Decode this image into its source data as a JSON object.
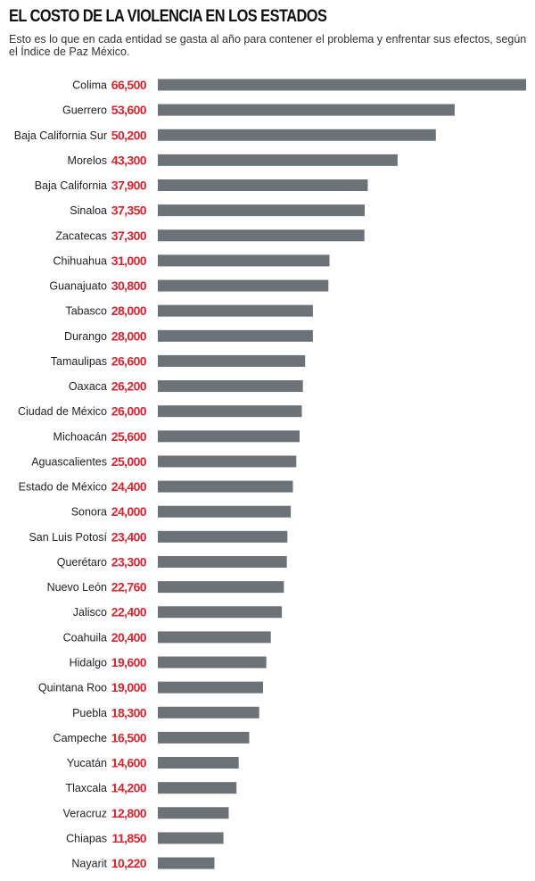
{
  "header": {
    "title": "EL COSTO DE LA VIOLENCIA EN LOS ESTADOS",
    "subtitle": "Esto es lo que en cada entidad se gasta al año para contener el problema y enfrentar sus efectos, según el Índice de Paz México."
  },
  "colors": {
    "bar": "#6b7378",
    "value": "#d7262f",
    "label": "#222222"
  },
  "chart_data": {
    "type": "bar",
    "orientation": "horizontal",
    "title": "EL COSTO DE LA VIOLENCIA EN LOS ESTADOS",
    "subtitle": "Esto es lo que en cada entidad se gasta al año para contener el problema y enfrentar sus efectos, según el Índice de Paz México.",
    "xlabel": "",
    "ylabel": "",
    "grid": false,
    "legend": "none",
    "categories": [
      "Colima",
      "Guerrero",
      "Baja California Sur",
      "Morelos",
      "Baja California",
      "Sinaloa",
      "Zacatecas",
      "Chihuahua",
      "Guanajuato",
      "Tabasco",
      "Durango",
      "Tamaulipas",
      "Oaxaca",
      "Ciudad de México",
      "Michoacán",
      "Aguascalientes",
      "Estado de México",
      "Sonora",
      "San Luis Potosí",
      "Querétaro",
      "Nuevo León",
      "Jalisco",
      "Coahuila",
      "Hidalgo",
      "Quintana Roo",
      "Puebla",
      "Campeche",
      "Yucatán",
      "Tlaxcala",
      "Veracruz",
      "Chiapas",
      "Nayarit"
    ],
    "values": [
      66500,
      53600,
      50200,
      43300,
      37900,
      37350,
      37300,
      31000,
      30800,
      28000,
      28000,
      26600,
      26200,
      26000,
      25600,
      25000,
      24400,
      24000,
      23400,
      23300,
      22760,
      22400,
      20400,
      19600,
      19000,
      18300,
      16500,
      14600,
      14200,
      12800,
      11850,
      10220
    ],
    "value_labels": [
      "66,500",
      "53,600",
      "50,200",
      "43,300",
      "37,900",
      "37,350",
      "37,300",
      "31,000",
      "30,800",
      "28,000",
      "28,000",
      "26,600",
      "26,200",
      "26,000",
      "25,600",
      "25,000",
      "24,400",
      "24,000",
      "23,400",
      "23,300",
      "22,760",
      "22,400",
      "20,400",
      "19,600",
      "19,000",
      "18,300",
      "16,500",
      "14,600",
      "14,200",
      "12,800",
      "11,850",
      "10,220"
    ]
  }
}
